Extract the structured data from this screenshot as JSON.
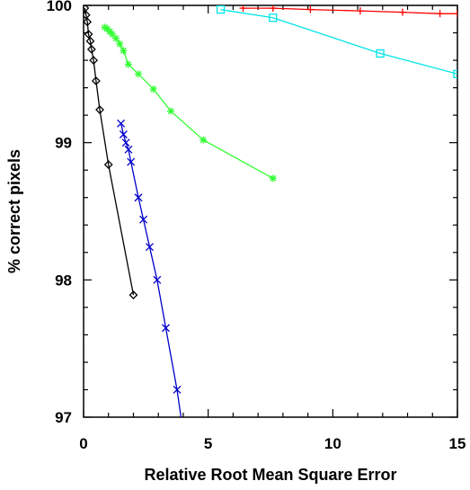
{
  "chart_data": {
    "type": "line",
    "title": "",
    "xlabel": "Relative Root Mean Square Error",
    "ylabel": "% correct pixels",
    "xlim": [
      0,
      15
    ],
    "ylim": [
      97,
      100
    ],
    "x_ticks": [
      0,
      5,
      10,
      15
    ],
    "y_ticks": [
      97,
      98,
      99,
      100
    ],
    "x_tick_labels": [
      "0",
      "5",
      "10",
      "15"
    ],
    "y_tick_labels": [
      "97",
      "98",
      "99",
      "100"
    ],
    "grid": false,
    "legend": "none",
    "series": [
      {
        "color": "#ff0000",
        "marker": "plus",
        "x": [
          6.4,
          7.6,
          9.1,
          11.1,
          12.8,
          14.3,
          15.0
        ],
        "y": [
          99.98,
          99.98,
          99.97,
          99.96,
          99.95,
          99.94,
          99.94
        ]
      },
      {
        "color": "#00e5e5",
        "marker": "square",
        "x": [
          5.5,
          7.6,
          11.9,
          15.0
        ],
        "y": [
          99.97,
          99.91,
          99.65,
          99.5
        ]
      },
      {
        "color": "#33ff33",
        "marker": "asterisk",
        "x": [
          0.85,
          0.95,
          1.05,
          1.15,
          1.3,
          1.45,
          1.6,
          1.8,
          2.2,
          2.8,
          3.5,
          4.8,
          7.6
        ],
        "y": [
          99.84,
          99.83,
          99.81,
          99.79,
          99.76,
          99.72,
          99.67,
          99.57,
          99.5,
          99.39,
          99.23,
          99.02,
          98.74
        ]
      },
      {
        "color": "#000000",
        "marker": "diamond",
        "x": [
          0.05,
          0.1,
          0.15,
          0.2,
          0.27,
          0.32,
          0.4,
          0.5,
          0.65,
          1.0,
          2.0
        ],
        "y": [
          99.98,
          99.93,
          99.88,
          99.79,
          99.74,
          99.68,
          99.6,
          99.45,
          99.24,
          98.84,
          97.89
        ]
      },
      {
        "color": "#0000cc",
        "marker": "x",
        "x": [
          1.5,
          1.6,
          1.7,
          1.8,
          1.9,
          2.2,
          2.4,
          2.65,
          2.95,
          3.3,
          3.75,
          3.95
        ],
        "y": [
          99.14,
          99.06,
          99.0,
          98.95,
          98.86,
          98.6,
          98.44,
          98.24,
          98.0,
          97.65,
          97.2,
          96.95
        ]
      }
    ]
  }
}
